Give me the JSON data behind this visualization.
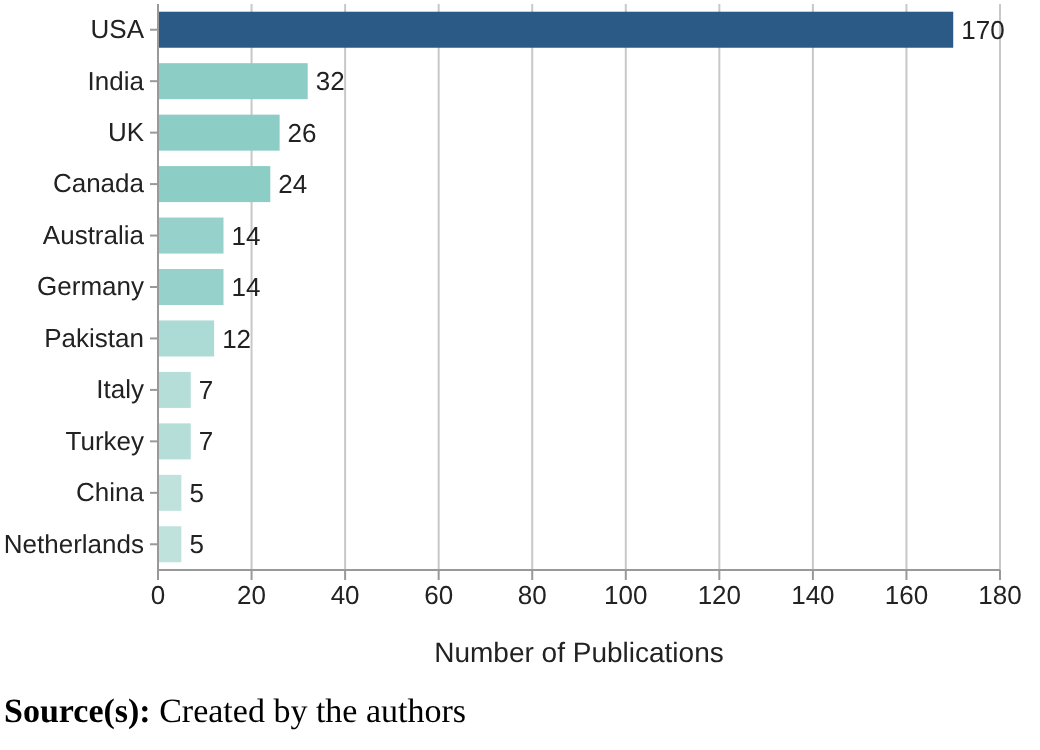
{
  "chart_data": {
    "type": "bar",
    "orientation": "horizontal",
    "categories": [
      "USA",
      "India",
      "UK",
      "Canada",
      "Australia",
      "Germany",
      "Pakistan",
      "Italy",
      "Turkey",
      "China",
      "Netherlands"
    ],
    "values": [
      170,
      32,
      26,
      24,
      14,
      14,
      12,
      7,
      7,
      5,
      5
    ],
    "colors": [
      "#2b5a87",
      "#8ccdc6",
      "#8ccdc6",
      "#8ccdc6",
      "#96d1cb",
      "#96d1cb",
      "#acdad4",
      "#b6ded9",
      "#b6ded9",
      "#bfe2dd",
      "#bfe2dd"
    ],
    "data_labels": true,
    "xlim": [
      0,
      180
    ],
    "xticks": [
      0,
      20,
      40,
      60,
      80,
      100,
      120,
      140,
      160,
      180
    ],
    "grid": "x",
    "xlabel": "Number of Publications",
    "annotations": [
      "Source(s): Created by the authors"
    ]
  }
}
